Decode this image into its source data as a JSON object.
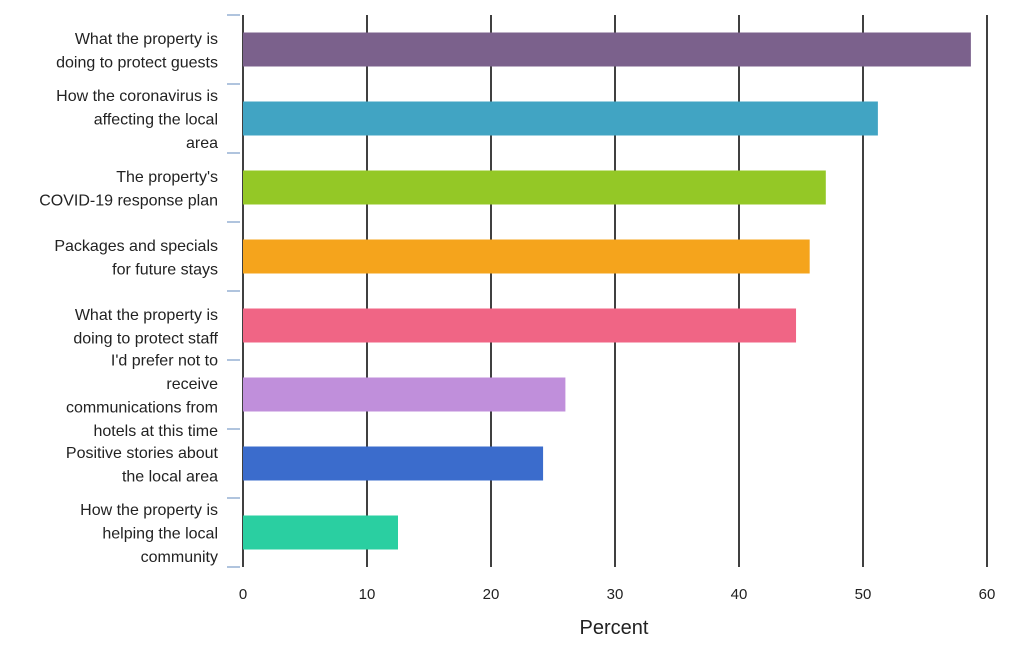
{
  "chart_data": {
    "type": "bar",
    "orientation": "horizontal",
    "categories": [
      [
        "What the property is",
        "doing to protect guests"
      ],
      [
        "How the coronavirus is",
        "affecting the local",
        "area"
      ],
      [
        "The property's",
        "COVID-19 response plan"
      ],
      [
        "Packages and specials",
        "for future stays"
      ],
      [
        "What the property is",
        "doing to protect staff"
      ],
      [
        "I'd prefer not to",
        "receive",
        "communications from",
        "hotels at this time"
      ],
      [
        "Positive stories about",
        "the local area"
      ],
      [
        "How the property is",
        "helping the local",
        "community"
      ]
    ],
    "values": [
      58.7,
      51.2,
      47.0,
      45.7,
      44.6,
      26.0,
      24.2,
      12.5
    ],
    "colors": [
      "#7b618c",
      "#41a4c3",
      "#94c826",
      "#f5a41c",
      "#f06585",
      "#c08fdb",
      "#3b6ccc",
      "#2acfa1"
    ],
    "xlabel": "Percent",
    "ylabel": "",
    "title": "",
    "xlim": [
      0,
      60
    ],
    "xticks": [
      0,
      10,
      20,
      30,
      40,
      50,
      60
    ],
    "grid": true
  }
}
